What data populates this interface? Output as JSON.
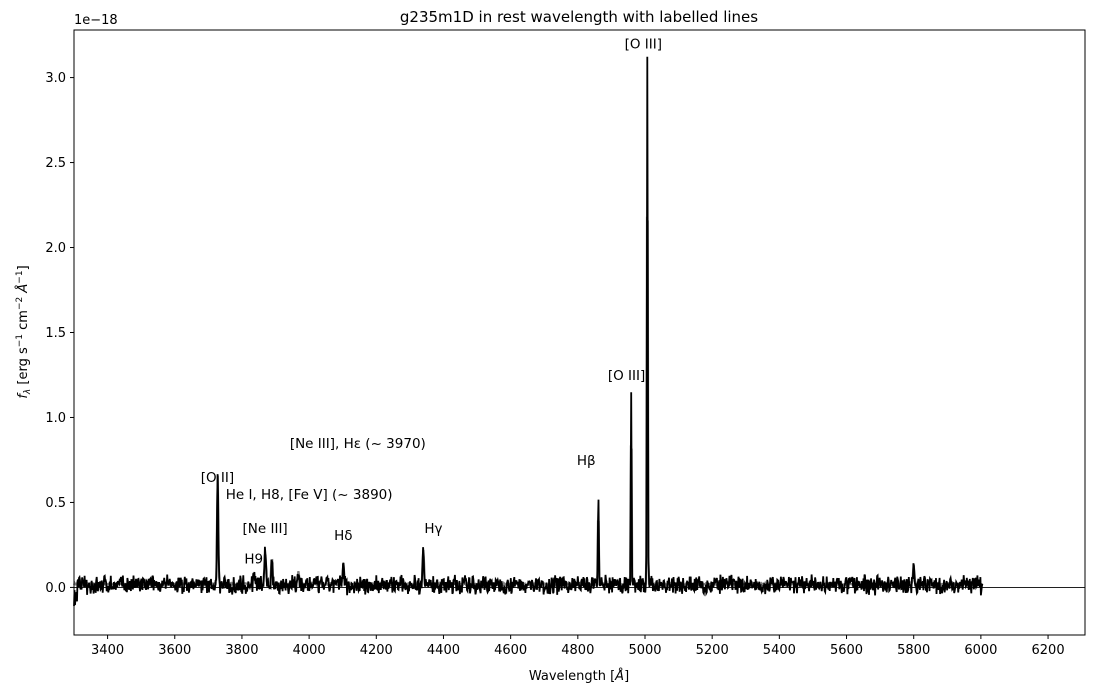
{
  "chart_data": {
    "type": "line",
    "title": "g235m1D in rest wavelength with labelled lines",
    "xlabel": "Wavelength [Å]",
    "ylabel": "f_λ [erg s⁻¹ cm⁻² Å⁻¹]",
    "y_scale_label": "1e−18",
    "y_scale": 1e-18,
    "xlim": [
      3300,
      6310
    ],
    "ylim": [
      -0.28,
      3.28
    ],
    "x_ticks": [
      3400,
      3600,
      3800,
      4000,
      4200,
      4400,
      4600,
      4800,
      5000,
      5200,
      5400,
      5600,
      5800,
      6000,
      6200
    ],
    "y_ticks": [
      0.0,
      0.5,
      1.0,
      1.5,
      2.0,
      2.5,
      3.0
    ],
    "x_tick_labels": [
      "3400",
      "3600",
      "3800",
      "4000",
      "4200",
      "4400",
      "4600",
      "4800",
      "5000",
      "5200",
      "5400",
      "5600",
      "5800",
      "6000",
      "6200"
    ],
    "y_tick_labels": [
      "0.0",
      "0.5",
      "1.0",
      "1.5",
      "2.0",
      "2.5",
      "3.0"
    ],
    "zero_line": 0,
    "series": [
      {
        "color": "#000000",
        "x_range": [
          3300,
          6005
        ],
        "peaks": [
          {
            "x": 3727,
            "y": 0.49
          },
          {
            "x": 3729,
            "y": 0.36
          },
          {
            "x": 3835,
            "y": 0.07
          },
          {
            "x": 3869,
            "y": 0.19
          },
          {
            "x": 3889,
            "y": 0.16
          },
          {
            "x": 3968,
            "y": 0.08
          },
          {
            "x": 4102,
            "y": 0.12
          },
          {
            "x": 4340,
            "y": 0.21
          },
          {
            "x": 4861,
            "y": 0.49
          },
          {
            "x": 4959,
            "y": 1.16
          },
          {
            "x": 5007,
            "y": 3.12
          },
          {
            "x": 5800,
            "y": 0.11
          }
        ]
      },
      {
        "color": "#808080",
        "x_range": [
          3300,
          6005
        ],
        "continuum": 0.02
      }
    ],
    "annotations": [
      {
        "text": "[O II]",
        "x": 3727,
        "y": 0.62
      },
      {
        "text": "H9",
        "x": 3835,
        "y": 0.14
      },
      {
        "text": "[Ne III]",
        "x": 3869,
        "y": 0.32
      },
      {
        "text": "He I, H8, [Fe V]  (~ 3890)",
        "x": 4000,
        "y": 0.52
      },
      {
        "text": "[Ne III], Hε  (~ 3970)",
        "x": 4145,
        "y": 0.82
      },
      {
        "text": "Hδ",
        "x": 4102,
        "y": 0.28
      },
      {
        "text": "Hγ",
        "x": 4370,
        "y": 0.32
      },
      {
        "text": "Hβ",
        "x": 4825,
        "y": 0.72
      },
      {
        "text": "[O III]",
        "x": 4945,
        "y": 1.22
      },
      {
        "text": "[O III]",
        "x": 4995,
        "y": 3.17
      }
    ]
  }
}
